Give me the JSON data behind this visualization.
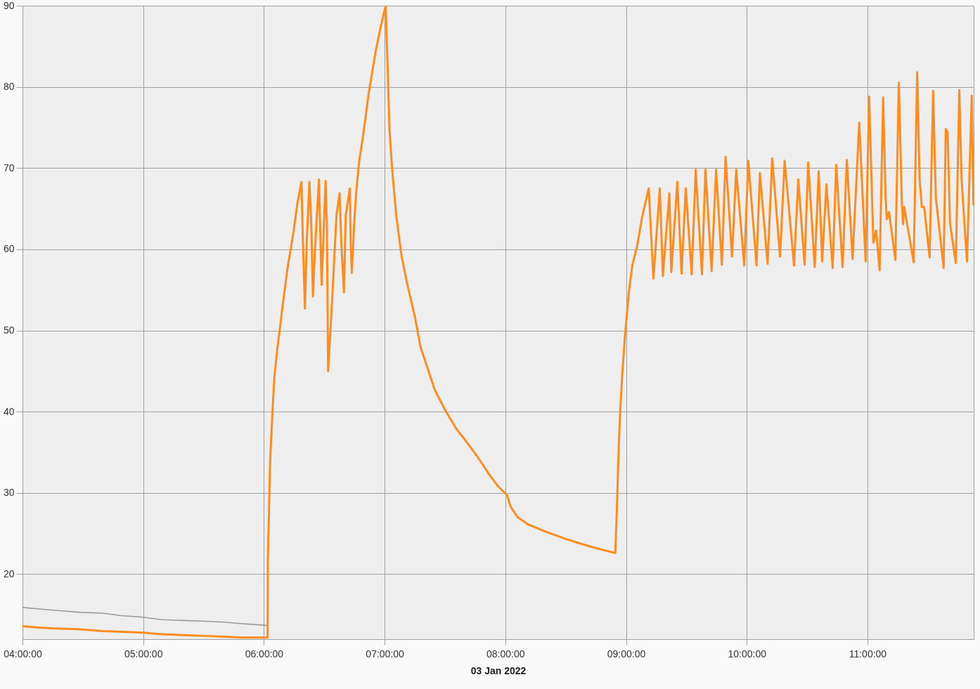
{
  "chart_data": {
    "type": "line",
    "xlabel": "03 Jan 2022",
    "xlim": [
      4,
      11.88
    ],
    "xticks": [
      {
        "value": 4,
        "label": "04:00:00"
      },
      {
        "value": 5,
        "label": "05:00:00"
      },
      {
        "value": 6,
        "label": "06:00:00"
      },
      {
        "value": 7,
        "label": "07:00:00"
      },
      {
        "value": 8,
        "label": "08:00:00"
      },
      {
        "value": 9,
        "label": "09:00:00"
      },
      {
        "value": 10,
        "label": "10:00:00"
      },
      {
        "value": 11,
        "label": "11:00:00"
      }
    ],
    "ylim": [
      12,
      90
    ],
    "yticks": [
      20,
      30,
      40,
      50,
      60,
      70,
      80,
      90
    ],
    "grid": true,
    "series": [
      {
        "color": "#999999",
        "x": [
          4.0,
          4.149,
          4.305,
          4.484,
          4.662,
          4.818,
          4.996,
          5.152,
          5.33,
          5.508,
          5.666,
          5.821,
          6.017
        ],
        "values": [
          15.9,
          15.7,
          15.5,
          15.3,
          15.2,
          14.9,
          14.7,
          14.4,
          14.3,
          14.2,
          14.1,
          13.9,
          13.7
        ]
      },
      {
        "color": "#fd8c1c",
        "x": [
          4.0,
          4.149,
          4.305,
          4.484,
          4.662,
          4.818,
          4.996,
          5.152,
          5.33,
          5.508,
          5.666,
          5.821,
          6.009,
          6.031,
          6.033,
          6.042,
          6.049,
          6.058,
          6.071,
          6.087,
          6.11,
          6.165,
          6.198,
          6.243,
          6.277,
          6.311,
          6.322,
          6.34,
          6.355,
          6.377,
          6.393,
          6.406,
          6.422,
          6.456,
          6.478,
          6.511,
          6.522,
          6.532,
          6.567,
          6.601,
          6.627,
          6.641,
          6.663,
          6.678,
          6.712,
          6.719,
          6.728,
          6.752,
          6.768,
          6.79,
          6.824,
          6.868,
          6.924,
          6.969,
          7.009,
          7.028,
          7.04,
          7.062,
          7.096,
          7.14,
          7.185,
          7.252,
          7.297,
          7.415,
          7.505,
          7.594,
          7.683,
          7.772,
          7.861,
          7.935,
          8.015,
          8.044,
          8.103,
          8.192,
          8.34,
          8.488,
          8.636,
          8.754,
          8.911,
          8.923,
          8.932,
          8.941,
          8.953,
          8.97,
          8.991,
          9.023,
          9.052,
          9.091,
          9.13,
          9.169,
          9.188,
          9.227,
          9.28,
          9.305,
          9.359,
          9.375,
          9.425,
          9.46,
          9.495,
          9.544,
          9.577,
          9.629,
          9.658,
          9.709,
          9.746,
          9.794,
          9.825,
          9.878,
          9.913,
          9.979,
          10.013,
          10.081,
          10.109,
          10.173,
          10.211,
          10.276,
          10.314,
          10.392,
          10.427,
          10.479,
          10.509,
          10.563,
          10.596,
          10.625,
          10.66,
          10.712,
          10.741,
          10.794,
          10.829,
          10.877,
          10.932,
          10.985,
          11.014,
          11.049,
          11.072,
          11.101,
          11.13,
          11.15,
          11.16,
          11.179,
          11.231,
          11.26,
          11.285,
          11.295,
          11.305,
          11.383,
          11.412,
          11.432,
          11.451,
          11.47,
          11.515,
          11.544,
          11.567,
          11.631,
          11.649,
          11.664,
          11.684,
          11.732,
          11.761,
          11.78,
          11.81,
          11.825,
          11.864,
          11.878
        ],
        "values": [
          13.6,
          13.4,
          13.3,
          13.2,
          13.0,
          12.9,
          12.8,
          12.6,
          12.5,
          12.4,
          12.3,
          12.2,
          12.2,
          12.2,
          22.0,
          27.6,
          32.7,
          36.0,
          40.0,
          44.3,
          47.6,
          54.2,
          57.9,
          61.9,
          65.6,
          68.3,
          61.6,
          52.7,
          60.9,
          68.3,
          62.9,
          54.2,
          59.6,
          68.6,
          55.6,
          68.4,
          62.6,
          45.0,
          54.2,
          64.2,
          66.9,
          60.9,
          54.7,
          64.2,
          67.5,
          60.9,
          57.1,
          64.2,
          67.6,
          70.9,
          74.2,
          79.2,
          84.2,
          87.5,
          90.0,
          80.9,
          74.9,
          69.9,
          64.2,
          59.2,
          55.9,
          51.6,
          48.0,
          42.7,
          40.1,
          37.9,
          36.2,
          34.4,
          32.4,
          30.9,
          29.7,
          28.3,
          27.0,
          26.1,
          25.2,
          24.4,
          23.7,
          23.2,
          22.6,
          27.4,
          31.8,
          36.2,
          40.5,
          44.9,
          49.3,
          54.6,
          58.0,
          60.3,
          63.7,
          66.3,
          67.5,
          56.4,
          67.5,
          56.7,
          66.9,
          57.2,
          68.3,
          57.0,
          67.5,
          56.9,
          69.8,
          56.9,
          69.8,
          57.3,
          69.8,
          58.1,
          71.4,
          59.1,
          69.8,
          58.0,
          70.9,
          58.0,
          69.4,
          58.2,
          71.2,
          59.1,
          70.9,
          58.0,
          68.6,
          58.1,
          70.7,
          57.8,
          69.6,
          58.5,
          68.0,
          57.7,
          70.4,
          57.8,
          71.0,
          58.8,
          75.6,
          58.5,
          78.8,
          60.8,
          62.3,
          57.4,
          78.7,
          66.6,
          63.7,
          64.6,
          58.7,
          80.5,
          65.8,
          63.1,
          65.2,
          58.4,
          81.8,
          68.6,
          65.2,
          65.2,
          59.0,
          79.5,
          66.3,
          57.7,
          74.8,
          74.4,
          63.2,
          58.3,
          79.6,
          68.6,
          61.7,
          58.5,
          78.9,
          65.5
        ]
      }
    ]
  }
}
